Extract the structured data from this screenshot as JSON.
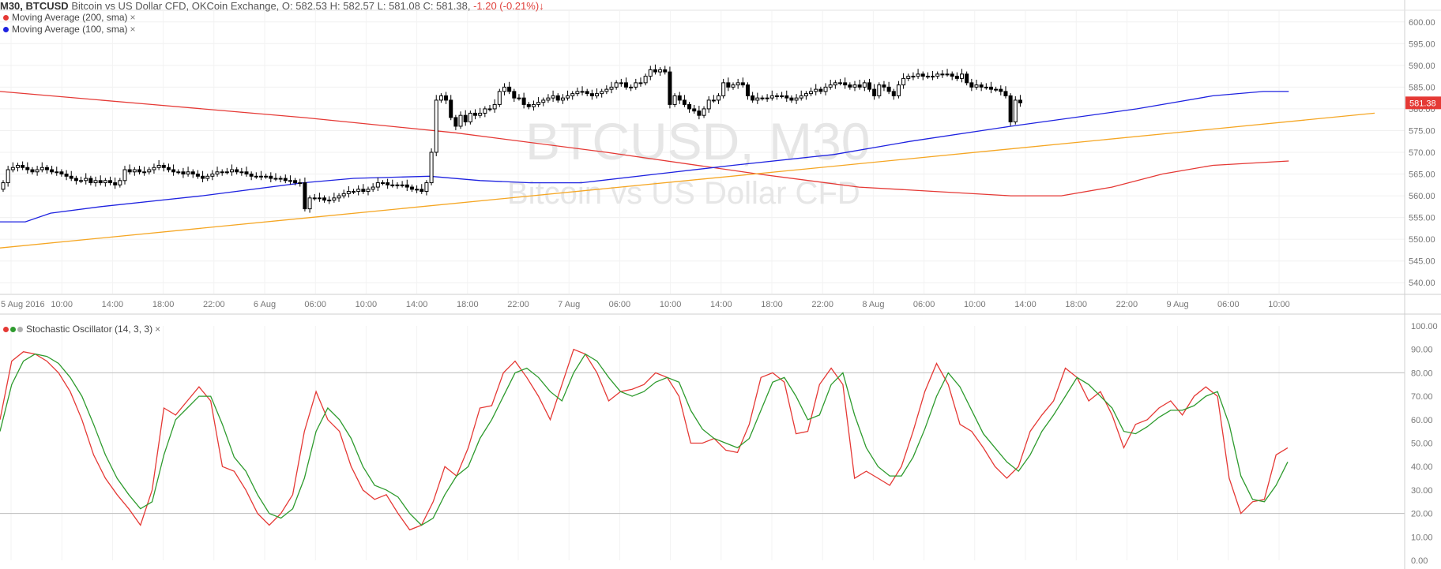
{
  "header": {
    "symbol": "M30, BTCUSD",
    "description": "Bitcoin vs US Dollar CFD, OKCoin Exchange,",
    "ohlc": "O: 582.53 H: 582.57 L: 581.08 C: 581.38,",
    "change": "-1.20 (-0.21%)",
    "change_arrow": "↓",
    "change_color": "#e0413c"
  },
  "watermark": {
    "line1": "BTCUSD, M30",
    "line2": "Bitcoin vs US Dollar CFD"
  },
  "legends": {
    "ma200": {
      "label": "Moving Average (200, sma)",
      "color": "#e53935",
      "close": "×"
    },
    "ma100": {
      "label": "Moving Average (100, sma)",
      "color": "#1e22e0",
      "close": "×"
    },
    "stoch": {
      "label": "Stochastic Oscillator (14, 3, 3)",
      "close": "×",
      "colors": [
        "#e53935",
        "#2e9b2e",
        "#b0b0b0"
      ]
    }
  },
  "chart_data": [
    {
      "type": "candlestick",
      "title": "BTCUSD, M30",
      "ylim": [
        537.5,
        602.5
      ],
      "y_ticks": [
        "600.00",
        "595.00",
        "590.00",
        "585.00",
        "580.00",
        "575.00",
        "570.00",
        "565.00",
        "560.00",
        "555.00",
        "550.00",
        "545.00",
        "540.00"
      ],
      "x_ticks": [
        "5 Aug 2016",
        "10:00",
        "14:00",
        "18:00",
        "22:00",
        "6 Aug",
        "06:00",
        "10:00",
        "14:00",
        "18:00",
        "22:00",
        "7 Aug",
        "06:00",
        "10:00",
        "14:00",
        "18:00",
        "22:00",
        "8 Aug",
        "06:00",
        "10:00",
        "14:00",
        "18:00",
        "22:00",
        "9 Aug",
        "06:00",
        "10:00"
      ],
      "last_price": "581.38",
      "last_price_color": "#e53935",
      "candles_close": [
        563,
        566,
        566.5,
        567,
        566.5,
        566,
        565.5,
        566,
        566.5,
        566,
        565.5,
        565.5,
        565,
        564.5,
        564,
        563.5,
        563.5,
        564,
        563,
        563.5,
        563,
        563.5,
        563,
        562.5,
        563.5,
        566,
        565.5,
        566,
        565.5,
        565.5,
        566,
        566.5,
        567,
        566.5,
        566,
        565.5,
        565.5,
        565,
        565.5,
        565,
        564.5,
        564,
        564.5,
        565,
        565.5,
        565.5,
        565.5,
        566,
        565.5,
        565.5,
        565,
        564.5,
        564.5,
        564.5,
        564.5,
        564,
        564,
        564,
        563.5,
        563.5,
        563,
        563,
        557,
        559.5,
        559.5,
        559.5,
        559,
        559,
        559.5,
        560,
        560.5,
        561,
        561,
        561.5,
        561,
        561.5,
        562,
        563,
        563,
        562.5,
        562.5,
        562.5,
        562.5,
        562,
        561.5,
        561.5,
        561,
        563,
        570,
        582,
        583,
        582,
        578,
        576,
        578.5,
        577,
        579,
        578.5,
        579,
        580,
        580,
        581,
        584,
        585,
        584,
        582.5,
        582.5,
        581,
        580.5,
        581,
        581.5,
        582,
        582.5,
        583,
        582,
        582.5,
        583,
        583.5,
        584,
        584,
        583.5,
        583,
        583.5,
        584,
        584.5,
        585,
        586,
        586,
        585,
        585,
        586,
        586,
        587.5,
        589,
        588.5,
        589,
        588.5,
        581,
        583,
        582,
        581,
        580,
        579.5,
        578.5,
        580,
        582,
        582,
        583,
        586,
        585,
        585.5,
        586,
        585.5,
        583,
        582,
        582.5,
        582.5,
        582.5,
        583,
        583,
        583,
        582.5,
        582,
        582.5,
        583,
        583.5,
        584,
        584.5,
        584,
        585,
        585.5,
        586,
        586,
        585.5,
        585,
        585.5,
        585,
        586,
        584.5,
        583,
        585.5,
        585,
        584,
        583,
        585.5,
        587,
        587.5,
        587.5,
        588,
        587.5,
        587.5,
        587.5,
        588,
        588,
        588,
        587.5,
        587,
        588,
        586,
        585,
        585.5,
        585,
        585,
        584.5,
        584.5,
        584,
        583,
        577,
        582,
        581.38
      ],
      "series": [
        {
          "name": "Moving Average (200, sma)",
          "color": "#e53935",
          "x": [
            0,
            30,
            60,
            90,
            120,
            150,
            170,
            185,
            200,
            210,
            220,
            230,
            240,
            255
          ],
          "y": [
            584,
            581,
            578,
            574.5,
            570,
            565,
            562,
            561,
            560,
            560,
            562,
            565,
            567,
            568
          ]
        },
        {
          "name": "Moving Average (100, sma)",
          "color": "#1e22e0",
          "x": [
            0,
            5,
            10,
            20,
            40,
            60,
            70,
            85,
            95,
            105,
            115,
            130,
            145,
            165,
            180,
            200,
            225,
            240,
            250,
            255
          ],
          "y": [
            554,
            554,
            556,
            557.5,
            560,
            563,
            564,
            564.5,
            563.5,
            563,
            563,
            565,
            567,
            569.5,
            572.5,
            576,
            580,
            583,
            584,
            584
          ]
        },
        {
          "name": "trend line",
          "color": "#f5a623",
          "x": [
            0,
            272
          ],
          "y": [
            548,
            579
          ]
        }
      ]
    },
    {
      "type": "line",
      "title": "Stochastic Oscillator (14, 3, 3)",
      "ylim": [
        0,
        100
      ],
      "y_ticks": [
        "100.00",
        "90.00",
        "80.00",
        "70.00",
        "60.00",
        "50.00",
        "40.00",
        "30.00",
        "20.00",
        "10.00",
        "0.00"
      ],
      "bands": [
        20,
        80
      ],
      "series": [
        {
          "name": "%K",
          "color": "#e53935",
          "values": [
            60,
            85,
            89,
            88,
            85,
            80,
            72,
            60,
            45,
            35,
            28,
            22,
            15,
            30,
            65,
            62,
            68,
            74,
            68,
            40,
            38,
            30,
            20,
            15,
            20,
            28,
            55,
            72,
            60,
            55,
            40,
            30,
            26,
            28,
            20,
            13,
            15,
            25,
            40,
            36,
            48,
            65,
            66,
            80,
            85,
            78,
            70,
            60,
            75,
            90,
            88,
            80,
            68,
            72,
            73,
            75,
            80,
            78,
            70,
            50,
            50,
            52,
            47,
            46,
            58,
            78,
            80,
            76,
            54,
            55,
            75,
            82,
            75,
            35,
            38,
            35,
            32,
            40,
            55,
            72,
            84,
            75,
            58,
            55,
            48,
            40,
            35,
            40,
            55,
            62,
            68,
            82,
            78,
            68,
            72,
            62,
            48,
            58,
            60,
            65,
            68,
            62,
            70,
            74,
            70,
            35,
            20,
            25,
            26,
            45,
            48
          ]
        },
        {
          "name": "%D",
          "color": "#2e9b2e",
          "values": [
            55,
            75,
            85,
            88,
            87,
            84,
            78,
            70,
            58,
            45,
            35,
            28,
            22,
            25,
            45,
            60,
            65,
            70,
            70,
            58,
            44,
            38,
            28,
            20,
            18,
            22,
            35,
            55,
            65,
            60,
            52,
            40,
            32,
            30,
            27,
            20,
            15,
            18,
            28,
            36,
            40,
            52,
            60,
            70,
            80,
            82,
            78,
            72,
            68,
            80,
            88,
            85,
            78,
            72,
            70,
            72,
            76,
            78,
            76,
            64,
            56,
            52,
            50,
            48,
            52,
            64,
            76,
            78,
            70,
            60,
            62,
            75,
            80,
            62,
            48,
            40,
            36,
            36,
            44,
            56,
            70,
            80,
            74,
            64,
            54,
            48,
            42,
            38,
            45,
            55,
            62,
            70,
            78,
            75,
            70,
            65,
            55,
            54,
            57,
            61,
            64,
            64,
            66,
            70,
            72,
            58,
            36,
            26,
            25,
            32,
            42
          ]
        }
      ]
    }
  ]
}
